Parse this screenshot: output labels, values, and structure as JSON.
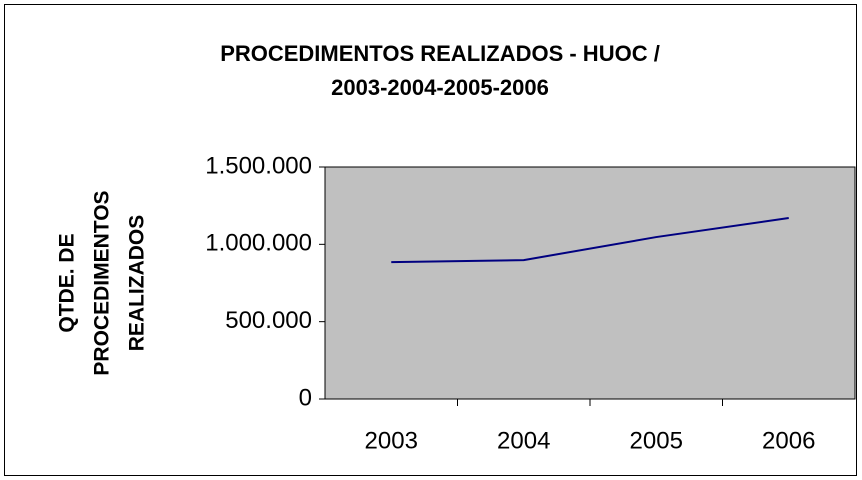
{
  "chart_data": {
    "type": "line",
    "title": [
      "PROCEDIMENTOS REALIZADOS - HUOC /",
      "2003-2004-2005-2006"
    ],
    "y_label": [
      "QTDE. DE",
      "PROCEDIMENTOS",
      "REALIZADOS"
    ],
    "categories": [
      "2003",
      "2004",
      "2005",
      "2006"
    ],
    "series": [
      {
        "name": "Procedimentos",
        "color": "#000080",
        "values": [
          885000,
          898000,
          1047000,
          1170000
        ]
      }
    ],
    "ylim": [
      0,
      1500000
    ],
    "yticks": [
      0,
      {
        "value": 500000,
        "label": "500.000"
      },
      {
        "value": 1000000,
        "label": "1.000.000"
      },
      {
        "value": 1500000,
        "label": "1.500.000"
      }
    ],
    "grid": false,
    "plot_background": "#c0c0c0"
  }
}
